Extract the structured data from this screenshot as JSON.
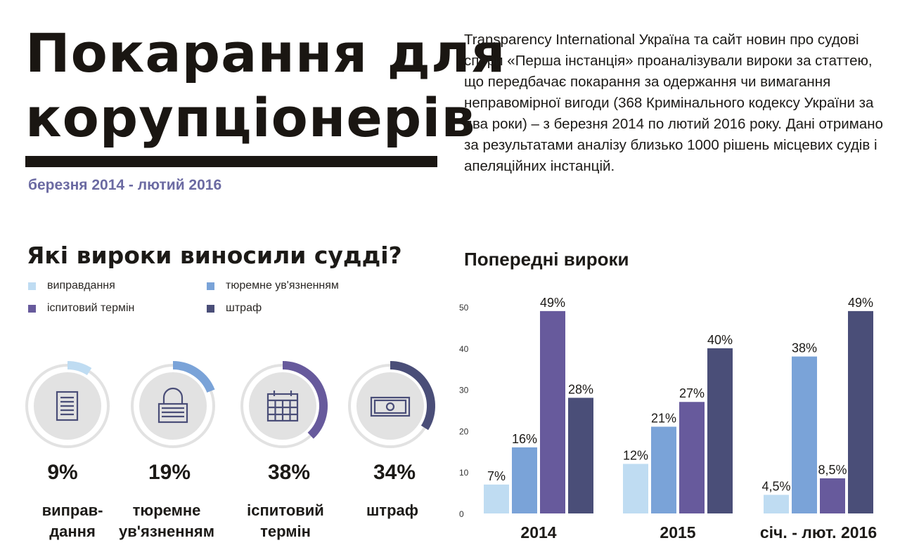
{
  "header": {
    "title_line1": "Покарання для",
    "title_line2": "корупціонерів",
    "date_range": "березня  2014 - лютий 2016",
    "intro": "Transparency International Україна та сайт новин про судові спори «Перша інстанція» проаналізували вироки за статтею, що передбачає покарання за одержання чи вимагання неправомірної вигоди (368 Кримінального кодексу України за два роки) – з березня 2014 по лютий 2016 року. Дані отримано за результатами аналізу близько 1000 рішень місцевих судів і апеляційних інстанцій."
  },
  "sentences": {
    "title": "Які вироки виносили судді?",
    "legend": [
      {
        "label": "виправдання",
        "color": "#bfdcf2"
      },
      {
        "label": "тюремне ув'язненням",
        "color": "#7aa3d8"
      },
      {
        "label": "іспитовий термін",
        "color": "#675a9c"
      },
      {
        "label": "штраф",
        "color": "#4a4e78"
      }
    ],
    "donuts": [
      {
        "pct_label": "9%",
        "value": 9,
        "label_line1": "виправ-",
        "label_line2": "дання",
        "color": "#bfdcf2",
        "icon": "document-icon"
      },
      {
        "pct_label": "19%",
        "value": 19,
        "label_line1": "тюремне",
        "label_line2": "ув'язненням",
        "color": "#7aa3d8",
        "icon": "lock-icon"
      },
      {
        "pct_label": "38%",
        "value": 38,
        "label_line1": "іспитовий",
        "label_line2": "термін",
        "color": "#675a9c",
        "icon": "calendar-icon"
      },
      {
        "pct_label": "34%",
        "value": 34,
        "label_line1": "штраф",
        "label_line2": "",
        "color": "#4a4e78",
        "icon": "banknote-icon"
      }
    ]
  },
  "chart_data": {
    "type": "bar",
    "title": "Попередні вироки",
    "categories": [
      "2014",
      "2015",
      "січ. - лют. 2016"
    ],
    "ylim": [
      0,
      50
    ],
    "yticks": [
      0,
      10,
      20,
      30,
      40,
      50
    ],
    "series": [
      {
        "name": "виправдання",
        "color": "#bfdcf2",
        "values": [
          7,
          12,
          4.5
        ],
        "labels": [
          "7%",
          "12%",
          "4,5%"
        ]
      },
      {
        "name": "тюремне ув'язненням",
        "color": "#7aa3d8",
        "values": [
          16,
          21,
          38
        ],
        "labels": [
          "16%",
          "21%",
          "38%"
        ]
      },
      {
        "name": "іспитовий термін",
        "color": "#675a9c",
        "values": [
          49,
          27,
          8.5
        ],
        "labels": [
          "49%",
          "27%",
          "8,5%"
        ]
      },
      {
        "name": "штраф",
        "color": "#4a4e78",
        "values": [
          28,
          40,
          49
        ],
        "labels": [
          "28%",
          "40%",
          "49%"
        ]
      }
    ],
    "grid": false,
    "legend": "none"
  }
}
